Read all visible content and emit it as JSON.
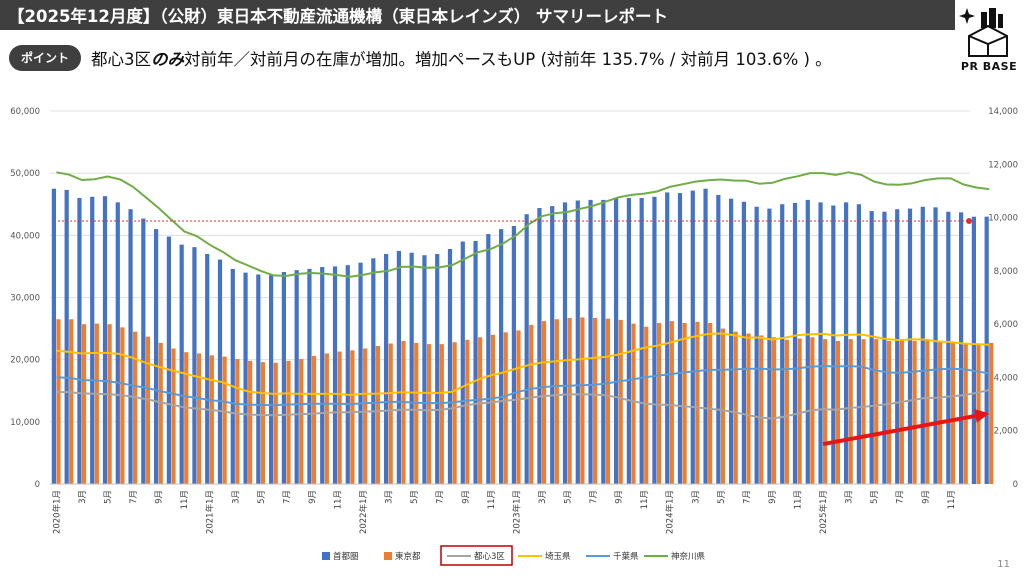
{
  "header": {
    "title": "【2025年12月度】（公財）東日本不動産流通機構（東日本レインズ） サマリーレポート",
    "point_label": "ポイント",
    "headline_pre": "都心3区",
    "headline_emph": "のみ",
    "headline_post": "対前年／対前月の在庫が増加。増加ペースもUP (対前年 135.7% / 対前月 103.6% ) 。"
  },
  "logo": {
    "text": "PR BASE"
  },
  "page_number": "11",
  "chart_data": {
    "type": "bar+line",
    "x_labels": [
      "2020年1月",
      "",
      "3月",
      "",
      "5月",
      "",
      "7月",
      "",
      "9月",
      "",
      "11月",
      "",
      "2021年1月",
      "",
      "3月",
      "",
      "5月",
      "",
      "7月",
      "",
      "9月",
      "",
      "11月",
      "",
      "2022年1月",
      "",
      "3月",
      "",
      "5月",
      "",
      "7月",
      "",
      "9月",
      "",
      "11月",
      "",
      "2023年1月",
      "",
      "3月",
      "",
      "5月",
      "",
      "7月",
      "",
      "9月",
      "",
      "11月",
      "",
      "2024年1月",
      "",
      "3月",
      "",
      "5月",
      "",
      "7月",
      "",
      "9月",
      "",
      "11月",
      "",
      "2025年1月",
      "",
      "3月",
      "",
      "5月",
      "",
      "7月",
      "",
      "9月",
      "",
      "11月",
      ""
    ],
    "y_left": {
      "min": 0,
      "max": 60000,
      "ticks": [
        "0",
        "10,000",
        "20,000",
        "30,000",
        "40,000",
        "50,000",
        "60,000"
      ]
    },
    "y_right": {
      "min": 0,
      "max": 14000,
      "ticks": [
        "0",
        "2,000",
        "4,000",
        "6,000",
        "8,000",
        "10,000",
        "12,000",
        "14,000"
      ]
    },
    "bar_series": [
      {
        "name": "首都圏",
        "color": "#4472c4",
        "axis": "left",
        "values": [
          47500,
          47300,
          46000,
          46200,
          46300,
          45300,
          44200,
          42700,
          41000,
          39800,
          38500,
          38100,
          37000,
          36100,
          34600,
          34000,
          33700,
          33600,
          34100,
          34400,
          34600,
          34900,
          35000,
          35200,
          35600,
          36300,
          37000,
          37500,
          37200,
          36800,
          37000,
          37800,
          39000,
          39100,
          40200,
          41000,
          41500,
          43400,
          44400,
          44700,
          45300,
          45600,
          45700,
          45700,
          46000,
          46000,
          46000,
          46200,
          46900,
          46800,
          47200,
          47500,
          46500,
          45900,
          45400,
          44600,
          44300,
          45000,
          45200,
          45700,
          45300,
          44800,
          45300,
          45000,
          43900,
          43800,
          44200,
          44300,
          44600,
          44500,
          43800,
          43700,
          43000,
          43000
        ]
      },
      {
        "name": "東京都",
        "color": "#ed7d31",
        "axis": "left",
        "values": [
          26500,
          26500,
          25700,
          25800,
          25700,
          25200,
          24500,
          23700,
          22700,
          21800,
          21200,
          21000,
          20700,
          20500,
          20100,
          19800,
          19600,
          19500,
          19800,
          20100,
          20600,
          21000,
          21300,
          21500,
          21800,
          22200,
          22600,
          23000,
          22700,
          22500,
          22500,
          22800,
          23200,
          23600,
          24000,
          24400,
          24700,
          25600,
          26200,
          26500,
          26700,
          26800,
          26700,
          26600,
          26400,
          25800,
          25300,
          25900,
          26200,
          25900,
          26100,
          25900,
          25000,
          24500,
          24200,
          23900,
          23600,
          23200,
          23400,
          23600,
          23300,
          23000,
          23300,
          23300,
          23300,
          23000,
          23100,
          23000,
          23100,
          23000,
          22800,
          22700,
          22500,
          22700
        ]
      }
    ],
    "line_series": [
      {
        "name": "都心3区",
        "color": "#a5a5a5",
        "axis": "right",
        "values": [
          3450,
          3450,
          3400,
          3390,
          3370,
          3340,
          3270,
          3190,
          3080,
          2980,
          2880,
          2830,
          2780,
          2730,
          2650,
          2610,
          2590,
          2580,
          2600,
          2620,
          2640,
          2670,
          2690,
          2690,
          2710,
          2730,
          2760,
          2790,
          2790,
          2770,
          2780,
          2840,
          2950,
          3020,
          3060,
          3120,
          3160,
          3230,
          3290,
          3330,
          3360,
          3370,
          3360,
          3330,
          3240,
          3120,
          3020,
          2980,
          2970,
          2920,
          2880,
          2830,
          2780,
          2700,
          2600,
          2500,
          2460,
          2530,
          2640,
          2760,
          2810,
          2790,
          2850,
          2890,
          2940,
          2990,
          3070,
          3150,
          3230,
          3240,
          3290,
          3330,
          3420,
          3530
        ]
      },
      {
        "name": "埼玉県",
        "color": "#ffc000",
        "axis": "right",
        "values": [
          5000,
          4960,
          4900,
          4920,
          4920,
          4880,
          4730,
          4550,
          4400,
          4270,
          4150,
          4030,
          3920,
          3820,
          3630,
          3470,
          3420,
          3380,
          3400,
          3380,
          3380,
          3380,
          3380,
          3340,
          3390,
          3390,
          3410,
          3440,
          3430,
          3420,
          3420,
          3460,
          3700,
          3920,
          4080,
          4190,
          4330,
          4470,
          4560,
          4600,
          4650,
          4680,
          4730,
          4770,
          4860,
          4990,
          5110,
          5190,
          5300,
          5440,
          5540,
          5630,
          5650,
          5590,
          5490,
          5500,
          5420,
          5490,
          5590,
          5620,
          5640,
          5570,
          5600,
          5610,
          5520,
          5440,
          5400,
          5430,
          5420,
          5350,
          5330,
          5270,
          5250,
          5230
        ]
      },
      {
        "name": "千葉県",
        "color": "#5b9bd5",
        "axis": "right",
        "values": [
          4000,
          3990,
          3900,
          3890,
          3860,
          3790,
          3690,
          3620,
          3500,
          3400,
          3300,
          3230,
          3150,
          3100,
          3010,
          2980,
          2970,
          2960,
          2980,
          3000,
          3010,
          3010,
          3010,
          3000,
          3030,
          3050,
          3080,
          3080,
          3050,
          3040,
          3030,
          3070,
          3120,
          3160,
          3200,
          3280,
          3440,
          3560,
          3630,
          3680,
          3690,
          3710,
          3720,
          3770,
          3850,
          3920,
          4000,
          4060,
          4120,
          4180,
          4230,
          4280,
          4290,
          4300,
          4320,
          4330,
          4300,
          4300,
          4340,
          4400,
          4430,
          4410,
          4430,
          4400,
          4280,
          4190,
          4170,
          4210,
          4260,
          4300,
          4330,
          4310,
          4230,
          4150
        ]
      },
      {
        "name": "神奈川県",
        "color": "#70ad47",
        "axis": "right",
        "values": [
          11700,
          11610,
          11410,
          11440,
          11540,
          11430,
          11150,
          10760,
          10360,
          9920,
          9480,
          9300,
          8980,
          8720,
          8400,
          8200,
          8000,
          7830,
          7810,
          7890,
          7920,
          7890,
          7840,
          7780,
          7850,
          7950,
          8000,
          8150,
          8160,
          8120,
          8130,
          8220,
          8460,
          8700,
          8820,
          9040,
          9340,
          9760,
          10050,
          10160,
          10210,
          10330,
          10440,
          10600,
          10760,
          10850,
          10900,
          10980,
          11150,
          11250,
          11350,
          11400,
          11430,
          11390,
          11380,
          11270,
          11300,
          11450,
          11550,
          11670,
          11670,
          11600,
          11700,
          11600,
          11350,
          11240,
          11230,
          11290,
          11410,
          11470,
          11470,
          11240,
          11130,
          11070
        ]
      }
    ],
    "reference_line": {
      "axis": "left",
      "value": 42300,
      "color": "#e03030"
    },
    "trend_arrow": {
      "color": "#e81515",
      "from_index": 60,
      "from_value": 1500,
      "to_index": 73,
      "to_value": 2650
    },
    "legend_position": "bottom"
  }
}
